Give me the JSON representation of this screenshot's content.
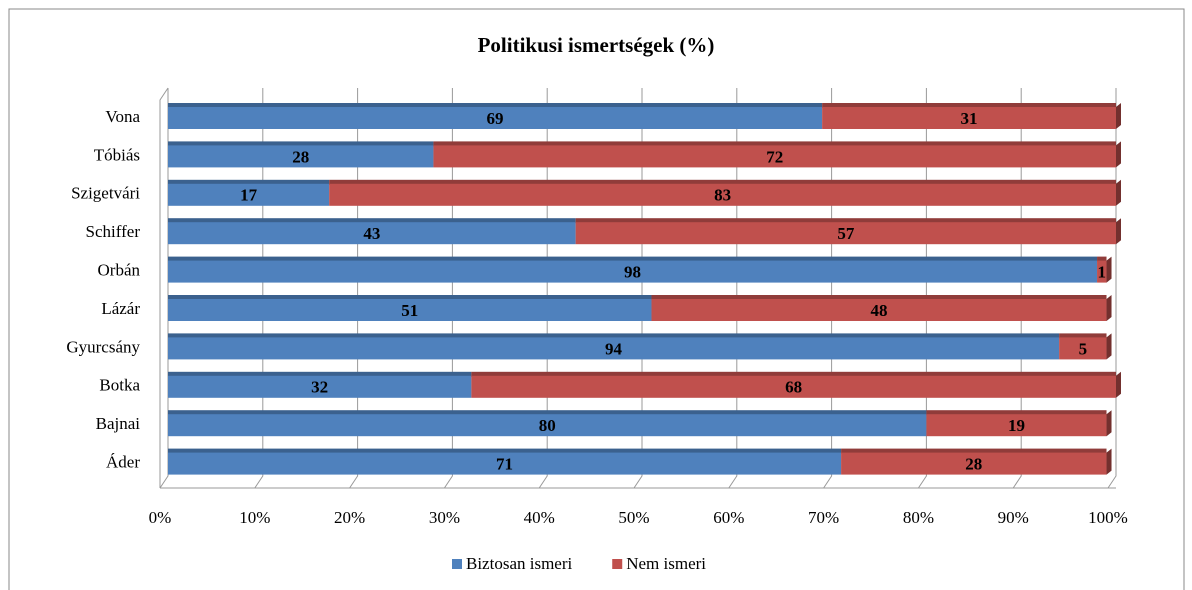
{
  "chart_data": {
    "type": "bar",
    "orientation": "horizontal",
    "stacked": true,
    "title": "Politikusi ismertségek (%)",
    "categories": [
      "Vona",
      "Tóbiás",
      "Szigetvári",
      "Schiffer",
      "Orbán",
      "Lázár",
      "Gyurcsány",
      "Botka",
      "Bajnai",
      "Áder"
    ],
    "series": [
      {
        "name": "Biztosan ismeri",
        "color": "#4f81bd",
        "values": [
          69,
          28,
          17,
          43,
          98,
          51,
          94,
          32,
          80,
          71
        ]
      },
      {
        "name": "Nem ismeri",
        "color": "#c0504d",
        "values": [
          31,
          72,
          83,
          57,
          1,
          48,
          5,
          68,
          19,
          28
        ]
      }
    ],
    "xlim": [
      0,
      100
    ],
    "xticks": [
      {
        "value": 0,
        "label": "0%"
      },
      {
        "value": 10,
        "label": "10%"
      },
      {
        "value": 20,
        "label": "20%"
      },
      {
        "value": 30,
        "label": "30%"
      },
      {
        "value": 40,
        "label": "40%"
      },
      {
        "value": 50,
        "label": "50%"
      },
      {
        "value": 60,
        "label": "60%"
      },
      {
        "value": 70,
        "label": "70%"
      },
      {
        "value": 80,
        "label": "80%"
      },
      {
        "value": 90,
        "label": "90%"
      },
      {
        "value": 100,
        "label": "100%"
      }
    ],
    "grid": true,
    "legend": "bottom"
  }
}
